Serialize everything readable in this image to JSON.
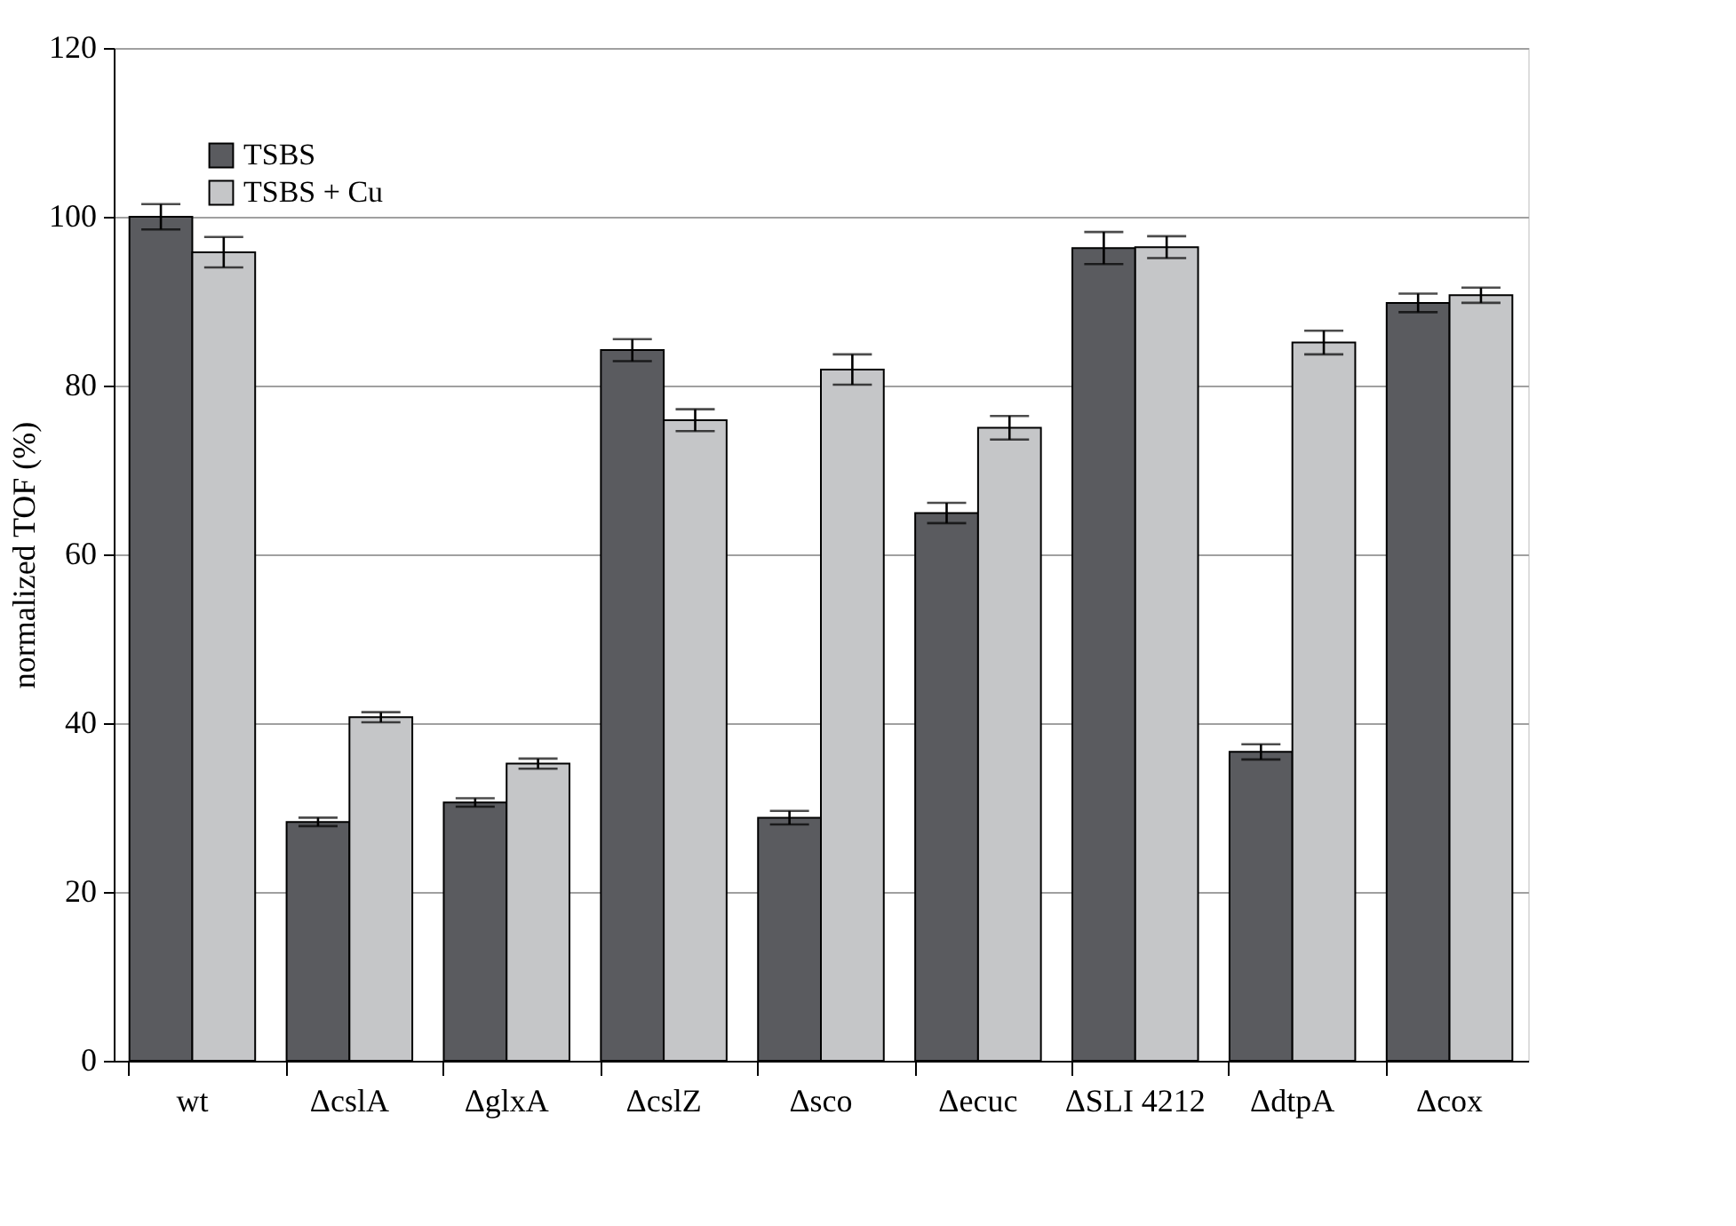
{
  "chart_data": {
    "type": "bar",
    "ylabel": "normalized TOF (%)",
    "categories": [
      "wt",
      "ΔcslA",
      "ΔglxA",
      "ΔcslZ",
      "Δsco",
      "Δecuc",
      "ΔSLI 4212",
      "ΔdtpA",
      "Δcox"
    ],
    "series": [
      {
        "name": "TSBS",
        "color": "#5a5b5f",
        "values": [
          100,
          28.3,
          30.6,
          84.2,
          28.8,
          64.9,
          96.3,
          36.6,
          89.8
        ],
        "errors": [
          1.5,
          0.5,
          0.5,
          1.3,
          0.8,
          1.2,
          1.9,
          0.9,
          1.1
        ]
      },
      {
        "name": "TSBS + Cu",
        "color": "#c5c6c8",
        "values": [
          95.8,
          40.7,
          35.2,
          75.9,
          81.9,
          75.0,
          96.4,
          85.1,
          90.7
        ],
        "errors": [
          1.8,
          0.6,
          0.6,
          1.3,
          1.8,
          1.4,
          1.3,
          1.4,
          0.9
        ]
      }
    ],
    "ylim": [
      0,
      120
    ],
    "yticks": [
      0,
      20,
      40,
      60,
      80,
      100,
      120
    ],
    "grid": "y",
    "legend": "top left"
  }
}
